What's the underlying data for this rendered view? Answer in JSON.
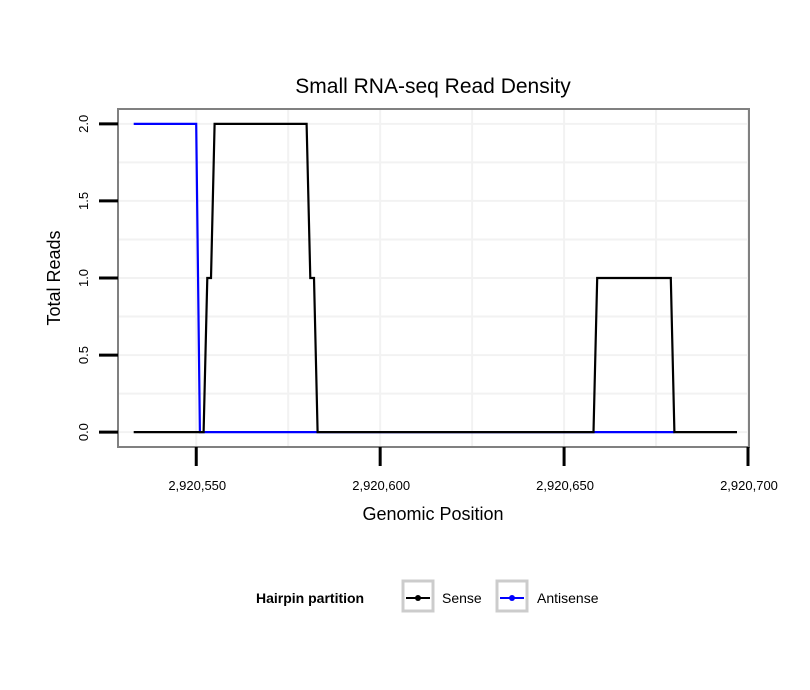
{
  "chart_data": {
    "type": "line",
    "title": "Small RNA-seq Read Density",
    "xlabel": "Genomic Position",
    "ylabel": "Total Reads",
    "xlim": [
      2920529,
      2920700
    ],
    "ylim": [
      -0.09,
      2.09
    ],
    "x_ticks": [
      2920550,
      2920600,
      2920650,
      2920700
    ],
    "x_tick_labels": [
      "2,920,550",
      "2,920,600",
      "2,920,650",
      "2,920,700"
    ],
    "y_ticks": [
      0,
      0.5,
      1,
      1.5,
      2
    ],
    "y_tick_labels": [
      "0.0",
      "0.5",
      "1.0",
      "1.5",
      "2.0"
    ],
    "grid": true,
    "legend": {
      "title": "Hairpin partition",
      "position": "bottom"
    },
    "series": [
      {
        "name": "Sense",
        "color": "#000000",
        "x": [
          2920533,
          2920552,
          2920553,
          2920554,
          2920555,
          2920580,
          2920581,
          2920582,
          2920583,
          2920658,
          2920659,
          2920679,
          2920680,
          2920697
        ],
        "values": [
          0,
          0,
          1,
          1,
          2,
          2,
          1,
          1,
          0,
          0,
          1,
          1,
          0,
          0
        ]
      },
      {
        "name": "Antisense",
        "color": "#0000ff",
        "x": [
          2920533,
          2920550,
          2920551,
          2920583,
          2920658,
          2920680
        ],
        "values": [
          2,
          2,
          0,
          0,
          0,
          0
        ]
      }
    ]
  }
}
